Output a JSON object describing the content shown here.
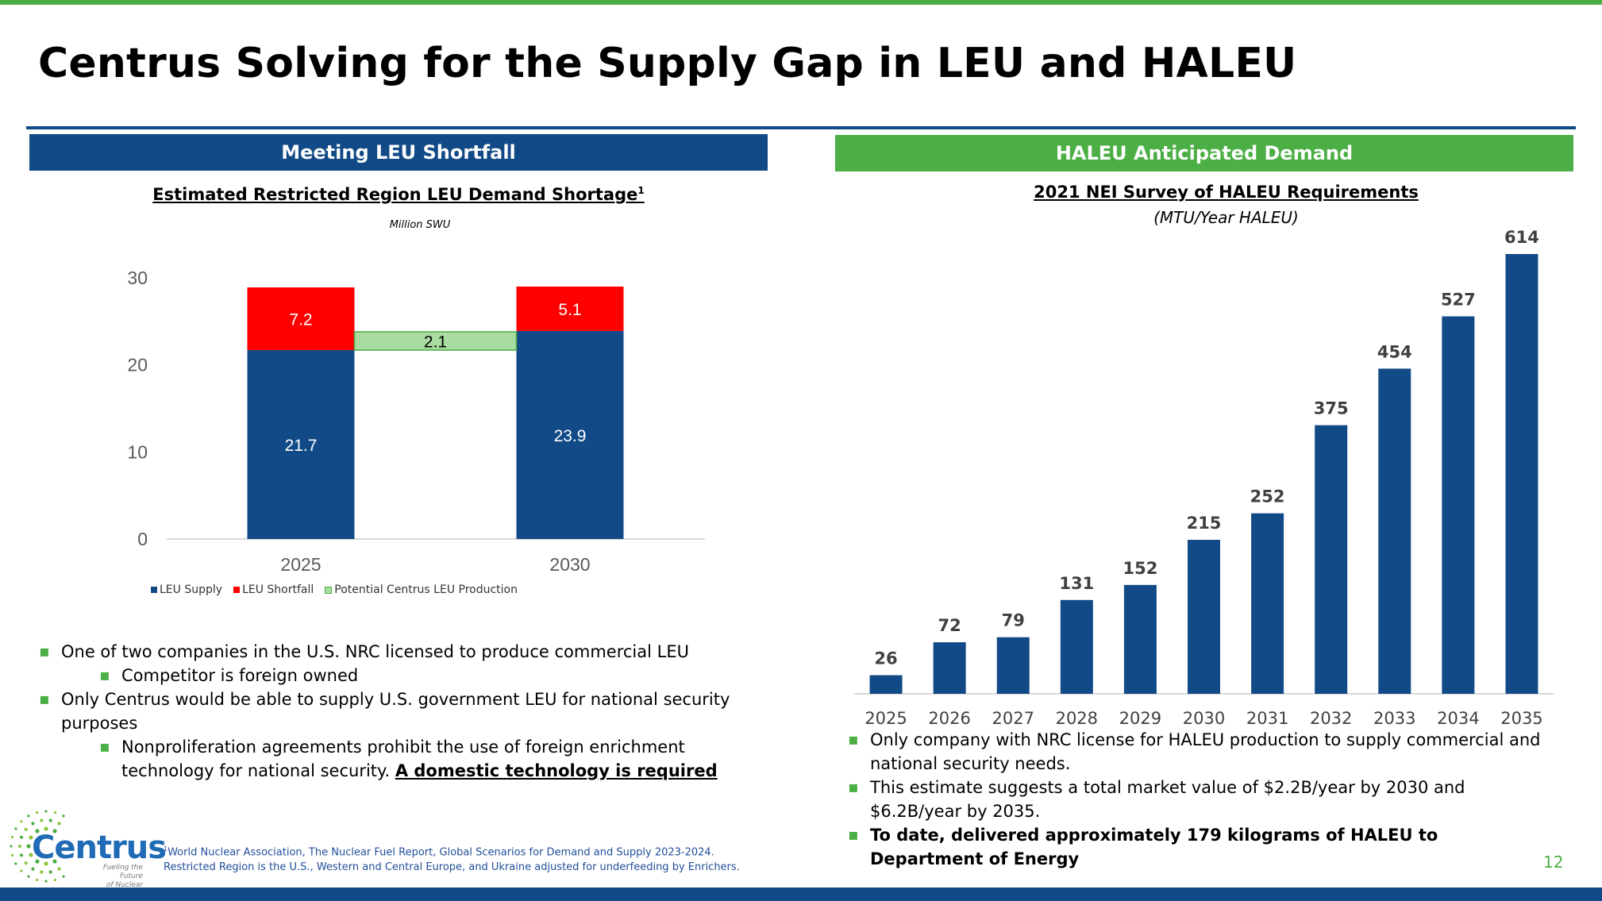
{
  "title": "Centrus Solving for the Supply Gap in LEU and HALEU",
  "left_panel": {
    "header": "Meeting LEU Shortfall",
    "chart_title": "Estimated Restricted Region LEU Demand Shortage",
    "chart_title_sup": "1",
    "chart_unit": "Million SWU",
    "bullets": [
      {
        "text": "One of two companies in the U.S. NRC licensed to produce commercial LEU",
        "level": 1
      },
      {
        "text": "Competitor is foreign owned",
        "level": 2
      },
      {
        "text": "Only Centrus would be able to supply U.S. government LEU for national security purposes",
        "level": 1
      },
      {
        "text": "Nonproliferation agreements prohibit the use of foreign enrichment technology for national security. ",
        "emph": "A domestic technology is required",
        "level": 2
      }
    ]
  },
  "right_panel": {
    "header": "HALEU Anticipated Demand",
    "chart_title": "2021 NEI Survey of HALEU Requirements",
    "chart_unit": "(MTU/Year HALEU)",
    "bullets": [
      {
        "text": "Only company with NRC license for HALEU production to supply commercial and national security needs.",
        "bold": false
      },
      {
        "text": "This estimate suggests a total market value of $2.2B/year by 2030 and $6.2B/year by 2035.",
        "bold": false
      },
      {
        "text": "To date, delivered approximately 179 kilograms of HALEU to Department of Energy",
        "bold": true
      }
    ]
  },
  "chart_data": [
    {
      "type": "bar",
      "stacked": true,
      "title": "Estimated Restricted Region LEU Demand Shortage",
      "ylabel": "Million SWU",
      "categories": [
        "2025",
        "2030"
      ],
      "ylim": [
        0,
        30
      ],
      "yticks": [
        0,
        10,
        20,
        30
      ],
      "series": [
        {
          "name": "LEU Supply",
          "values": [
            21.7,
            23.9
          ],
          "color": "#124a87"
        },
        {
          "name": "LEU Shortfall",
          "values": [
            7.2,
            5.1
          ],
          "color": "#ff0000"
        }
      ],
      "bridge": {
        "name": "Potential Centrus LEU Production",
        "value": 2.1,
        "color": "#a9dca0",
        "border": "#4caf45"
      },
      "legend": "bottom-left",
      "grid": false
    },
    {
      "type": "bar",
      "title": "2021 NEI Survey of HALEU Requirements",
      "ylabel": "(MTU/Year HALEU)",
      "categories": [
        "2025",
        "2026",
        "2027",
        "2028",
        "2029",
        "2030",
        "2031",
        "2032",
        "2033",
        "2034",
        "2035"
      ],
      "values": [
        26,
        72,
        79,
        131,
        152,
        215,
        252,
        375,
        454,
        527,
        614
      ],
      "color": "#124a87",
      "data_labels": true,
      "grid": false
    }
  ],
  "footnote": {
    "sup": "1",
    "line1": "World Nuclear Association, The Nuclear Fuel Report, Global Scenarios for Demand and Supply 2023-2024.",
    "line2": "Restricted Region is the U.S., Western and Central Europe, and Ukraine adjusted for underfeeding by Enrichers."
  },
  "logo": {
    "name": "Centrus",
    "tagline1": "Fueling the Future",
    "tagline2": "of Nuclear Power"
  },
  "page_number": "12",
  "colors": {
    "navy": "#124a87",
    "green": "#4caf45",
    "red": "#ff0000",
    "light_green": "#a9dca0"
  }
}
